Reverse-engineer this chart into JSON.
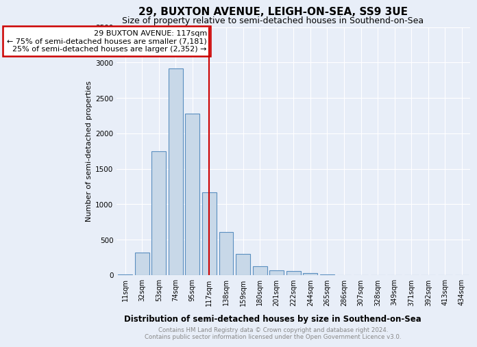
{
  "title": "29, BUXTON AVENUE, LEIGH-ON-SEA, SS9 3UE",
  "subtitle": "Size of property relative to semi-detached houses in Southend-on-Sea",
  "xlabel": "Distribution of semi-detached houses by size in Southend-on-Sea",
  "ylabel": "Number of semi-detached properties",
  "footnote1": "Contains HM Land Registry data © Crown copyright and database right 2024.",
  "footnote2": "Contains public sector information licensed under the Open Government Licence v3.0.",
  "bar_labels": [
    "11sqm",
    "32sqm",
    "53sqm",
    "74sqm",
    "95sqm",
    "117sqm",
    "138sqm",
    "159sqm",
    "180sqm",
    "201sqm",
    "222sqm",
    "244sqm",
    "265sqm",
    "286sqm",
    "307sqm",
    "328sqm",
    "349sqm",
    "371sqm",
    "392sqm",
    "413sqm",
    "434sqm"
  ],
  "bar_values": [
    10,
    320,
    1750,
    2920,
    2280,
    1170,
    610,
    300,
    130,
    70,
    60,
    30,
    10,
    0,
    0,
    0,
    0,
    0,
    0,
    0,
    0
  ],
  "bar_color": "#c8d8e8",
  "bar_edge_color": "#5a8fc0",
  "vline_x_index": 5,
  "vline_color": "#cc0000",
  "ann_line1": "  29 BUXTON AVENUE: 117sqm",
  "ann_line2": "← 75% of semi-detached houses are smaller (7,181)",
  "ann_line3": "  25% of semi-detached houses are larger (2,352) →",
  "annotation_box_color": "#ffffff",
  "annotation_box_edge": "#cc0000",
  "bg_color": "#e8eef8",
  "plot_bg_color": "#e8eef8",
  "ylim": [
    0,
    3500
  ],
  "title_fontsize": 11,
  "subtitle_fontsize": 9,
  "xlabel_fontsize": 8.5,
  "ylabel_fontsize": 8
}
